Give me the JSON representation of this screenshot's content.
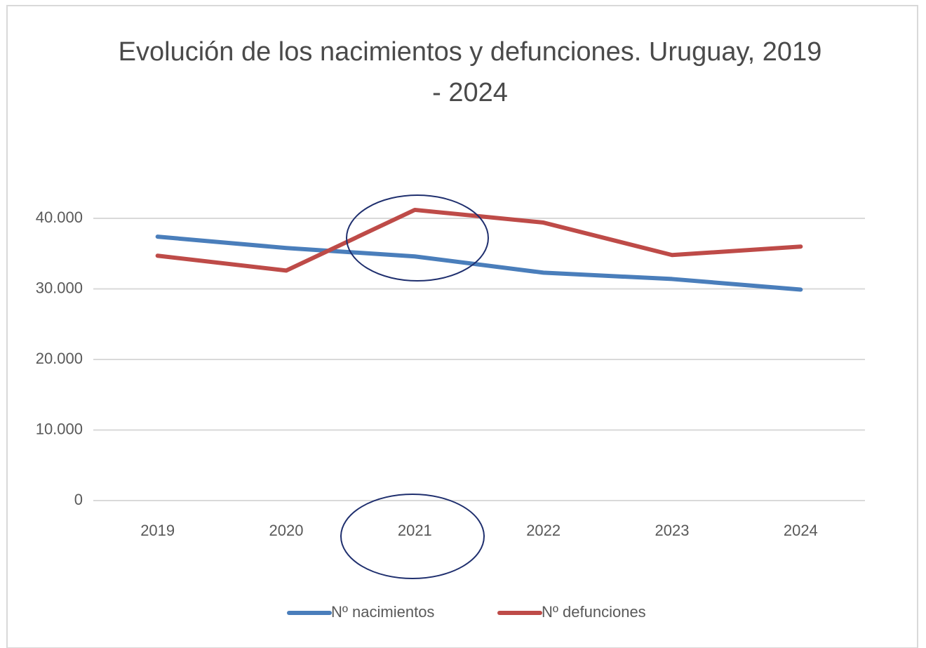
{
  "chart_data": {
    "type": "line",
    "title": "Evolución de los nacimientos y defunciones. Uruguay, 2019 - 2024",
    "categories": [
      "2019",
      "2020",
      "2021",
      "2022",
      "2023",
      "2024"
    ],
    "series": [
      {
        "name": "Nº nacimientos",
        "color": "#4a7ebb",
        "values": [
          37400,
          35800,
          34600,
          32300,
          31400,
          29900
        ]
      },
      {
        "name": "Nº defunciones",
        "color": "#be4b48",
        "values": [
          34700,
          32600,
          41200,
          39400,
          34800,
          36000
        ]
      }
    ],
    "ylim": [
      0,
      40000
    ],
    "yticks": [
      0,
      {
        "value": 10000,
        "label": "10.000"
      },
      {
        "value": 20000,
        "label": "20.000"
      },
      {
        "value": 30000,
        "label": "30.000"
      },
      {
        "value": 40000,
        "label": "40.000"
      }
    ],
    "grid": true,
    "legend": "bottom"
  }
}
